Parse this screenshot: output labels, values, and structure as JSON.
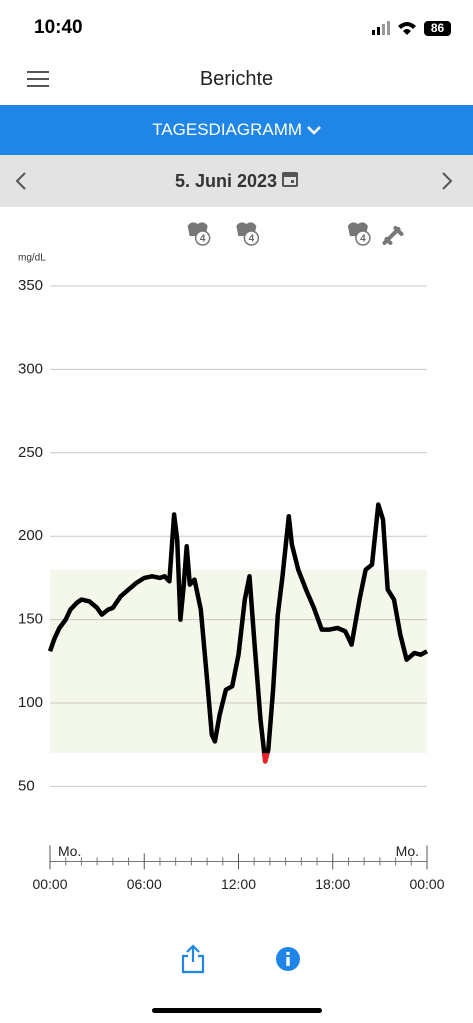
{
  "status_bar": {
    "time": "10:40",
    "battery": "86"
  },
  "header": {
    "title": "Berichte"
  },
  "tab": {
    "label": "TAGESDIAGRAMM"
  },
  "date_nav": {
    "date": "5. Juni 2023"
  },
  "chart_data": {
    "type": "line",
    "y_label": "mg/dL",
    "color": "#000000",
    "low_color": "#e8202a",
    "band_color": "#f4f8ea",
    "target_range": [
      70,
      180
    ],
    "low_threshold": 70,
    "ylim": [
      5,
      350
    ],
    "yticks": [
      50,
      100,
      150,
      200,
      250,
      300,
      350
    ],
    "grid": true,
    "xlim": [
      0,
      24
    ],
    "xticks": [
      {
        "value": 0,
        "label": "00:00"
      },
      {
        "value": 6,
        "label": "06:00"
      },
      {
        "value": 12,
        "label": "12:00"
      },
      {
        "value": 18,
        "label": "18:00"
      },
      {
        "value": 24,
        "label": "00:00"
      }
    ],
    "xminorticks": [
      1,
      2,
      3,
      4,
      5,
      7,
      8,
      9,
      10,
      11,
      13,
      14,
      15,
      16,
      17,
      19,
      20,
      21,
      22,
      23
    ],
    "day_labels": [
      {
        "value": 0,
        "label": "Mo."
      },
      {
        "value": 24,
        "label": "Mo."
      }
    ],
    "events": [
      {
        "x": 9.4,
        "kind": "meal",
        "label": "4"
      },
      {
        "x": 12.5,
        "kind": "meal",
        "label": "4"
      },
      {
        "x": 19.6,
        "kind": "meal",
        "label": "4"
      },
      {
        "x": 21.8,
        "kind": "insulin"
      }
    ],
    "x": [
      0,
      0.3,
      0.6,
      1,
      1.3,
      1.7,
      2,
      2.5,
      3,
      3.3,
      3.7,
      4,
      4.5,
      5,
      5.5,
      6,
      6.5,
      7,
      7.3,
      7.6,
      7.9,
      8.1,
      8.3,
      8.5,
      8.7,
      8.9,
      9.2,
      9.6,
      10,
      10.3,
      10.5,
      10.8,
      11.2,
      11.6,
      12,
      12.4,
      12.7,
      13,
      13.4,
      13.7,
      13.9,
      14.2,
      14.5,
      14.8,
      15.2,
      15.4,
      15.8,
      16.3,
      16.8,
      17.3,
      17.8,
      18.3,
      18.8,
      19.2,
      19.7,
      20.1,
      20.5,
      20.9,
      21.2,
      21.5,
      21.9,
      22.3,
      22.7,
      23.2,
      23.6,
      24
    ],
    "values": [
      131,
      139,
      145,
      150,
      156,
      160,
      162,
      161,
      157,
      153,
      156,
      157,
      164,
      168,
      172,
      175,
      176,
      175,
      176,
      173,
      213,
      198,
      150,
      169,
      194,
      171,
      174,
      156,
      114,
      81,
      77,
      93,
      108,
      110,
      129,
      162,
      176,
      138,
      90,
      65,
      72,
      108,
      153,
      176,
      212,
      195,
      180,
      168,
      157,
      144,
      144,
      145,
      143,
      135,
      162,
      180,
      183,
      219,
      210,
      168,
      162,
      141,
      126,
      130,
      129,
      131
    ]
  }
}
